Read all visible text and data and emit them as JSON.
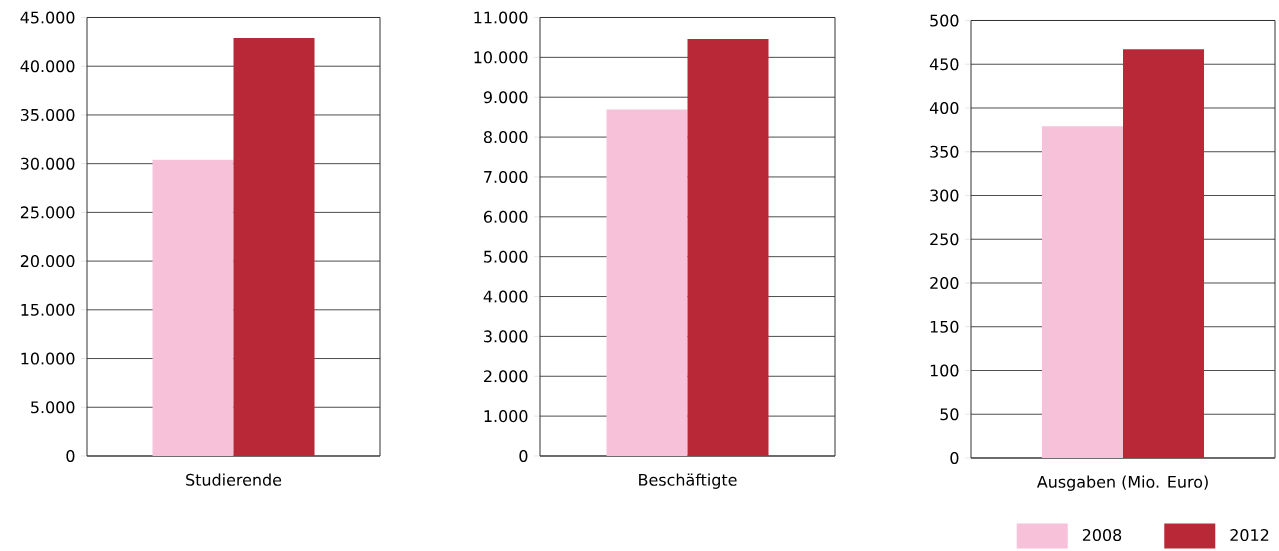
{
  "chart_data": [
    {
      "type": "bar",
      "categories": [
        "Studierende"
      ],
      "ylim": [
        0,
        45000
      ],
      "yticks": [
        {
          "value": 0,
          "label": "0"
        },
        {
          "value": 5000,
          "label": "5.000"
        },
        {
          "value": 10000,
          "label": "10.000"
        },
        {
          "value": 15000,
          "label": "15.000"
        },
        {
          "value": 20000,
          "label": "20.000"
        },
        {
          "value": 25000,
          "label": "25.000"
        },
        {
          "value": 30000,
          "label": "30.000"
        },
        {
          "value": 35000,
          "label": "35.000"
        },
        {
          "value": 40000,
          "label": "40.000"
        },
        {
          "value": 45000,
          "label": "45.000"
        }
      ],
      "grid": "y",
      "series": [
        {
          "color": "#f7c1da",
          "values": [
            30400
          ]
        },
        {
          "color": "#b82837",
          "values": [
            42900
          ]
        }
      ]
    },
    {
      "type": "bar",
      "categories": [
        "Beschäftigte"
      ],
      "ylim": [
        0,
        11000
      ],
      "yticks": [
        {
          "value": 0,
          "label": "0"
        },
        {
          "value": 1000,
          "label": "1.000"
        },
        {
          "value": 2000,
          "label": "2.000"
        },
        {
          "value": 3000,
          "label": "3.000"
        },
        {
          "value": 4000,
          "label": "4.000"
        },
        {
          "value": 5000,
          "label": "5.000"
        },
        {
          "value": 6000,
          "label": "6.000"
        },
        {
          "value": 7000,
          "label": "7.000"
        },
        {
          "value": 8000,
          "label": "8.000"
        },
        {
          "value": 9000,
          "label": "9.000"
        },
        {
          "value": 10000,
          "label": "10.000"
        },
        {
          "value": 11000,
          "label": "11.000"
        }
      ],
      "grid": "y",
      "series": [
        {
          "color": "#f7c1da",
          "values": [
            8690
          ]
        },
        {
          "color": "#b82837",
          "values": [
            10460
          ]
        }
      ]
    },
    {
      "type": "bar",
      "categories": [
        "Ausgaben (Mio. Euro)"
      ],
      "ylim": [
        0,
        500
      ],
      "yticks": [
        0,
        50,
        100,
        150,
        200,
        250,
        300,
        350,
        400,
        450,
        500
      ],
      "grid": "y",
      "legend": "bottom right",
      "series": [
        {
          "name": "2008",
          "color": "#f7c1da",
          "values": [
            379
          ]
        },
        {
          "name": "2012",
          "color": "#b82837",
          "values": [
            467
          ]
        }
      ]
    }
  ]
}
